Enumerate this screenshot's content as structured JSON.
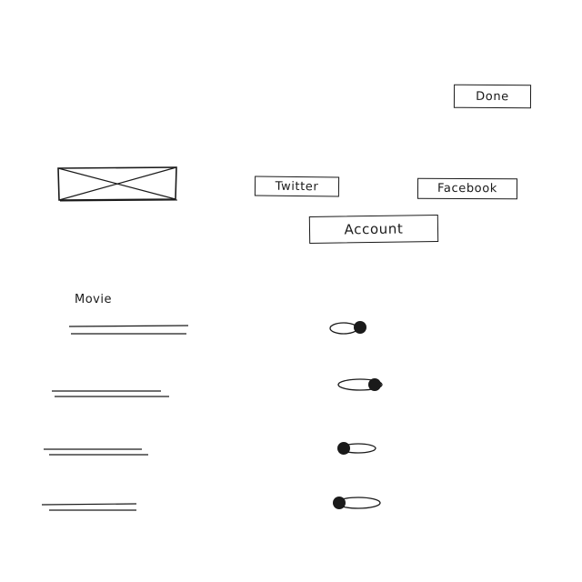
{
  "header": {
    "done_label": "Done"
  },
  "social": {
    "twitter_label": "Twitter",
    "facebook_label": "Facebook",
    "account_label": "Account"
  },
  "image_placeholder": {
    "icon": "image-placeholder-icon"
  },
  "settings": {
    "section_title": "Movie",
    "rows": [
      {
        "toggle_state": "on"
      },
      {
        "toggle_state": "on"
      },
      {
        "toggle_state": "off"
      },
      {
        "toggle_state": "off"
      }
    ]
  },
  "colors": {
    "ink": "#1a1a1a",
    "background": "#ffffff"
  }
}
